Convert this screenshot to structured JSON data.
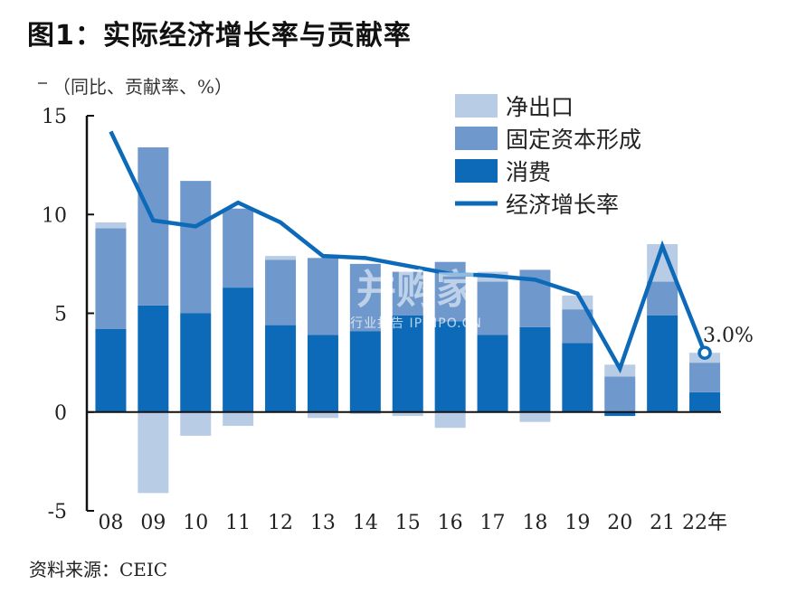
{
  "title": "图1：实际经济增长率与贡献率",
  "unit_label": "（同比、贡献率、%）",
  "source": "资料来源：CEIC",
  "watermark": {
    "main": "并购家",
    "sub": "行业报告 IPOIPO.CN"
  },
  "colors": {
    "net_export": "#b9cce6",
    "investment": "#6f99cc",
    "consumption": "#0c6ab8",
    "growth_line": "#0c6ab8"
  },
  "chart_data": {
    "type": "bar",
    "stacked": true,
    "categories": [
      "08",
      "09",
      "10",
      "11",
      "12",
      "13",
      "14",
      "15",
      "16",
      "17",
      "18",
      "19",
      "20",
      "21",
      "22年"
    ],
    "series": [
      {
        "name": "消费",
        "kind": "bar",
        "values": [
          4.2,
          5.4,
          5.0,
          6.3,
          4.4,
          3.9,
          4.1,
          4.9,
          4.6,
          3.9,
          4.3,
          3.5,
          -0.2,
          4.9,
          1.0
        ]
      },
      {
        "name": "固定资本形成",
        "kind": "bar",
        "values": [
          5.1,
          8.0,
          6.7,
          4.0,
          3.3,
          3.9,
          3.4,
          2.2,
          3.0,
          2.7,
          2.9,
          1.7,
          1.8,
          1.7,
          1.5
        ]
      },
      {
        "name": "净出口",
        "kind": "bar",
        "values": [
          0.3,
          -4.1,
          -1.2,
          -0.7,
          0.2,
          -0.3,
          -0.1,
          -0.2,
          -0.8,
          0.5,
          -0.5,
          0.7,
          0.6,
          1.9,
          0.5
        ]
      },
      {
        "name": "经济增长率",
        "kind": "line",
        "values": [
          14.2,
          9.7,
          9.4,
          10.6,
          9.6,
          7.9,
          7.8,
          7.4,
          7.0,
          6.9,
          6.7,
          6.0,
          2.2,
          8.4,
          3.0
        ]
      }
    ],
    "legend": [
      "净出口",
      "固定资本形成",
      "消费",
      "经济增长率"
    ],
    "legend_position": "top-right",
    "ylim": [
      -5,
      15
    ],
    "yticks": [
      -5,
      0,
      5,
      10,
      15
    ],
    "annotations": [
      {
        "category": "22年",
        "text": "3.0%"
      }
    ],
    "grid": false
  }
}
